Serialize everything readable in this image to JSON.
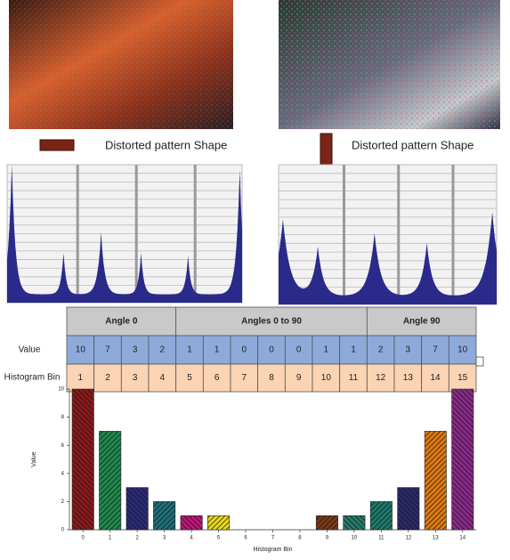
{
  "figures": [
    {
      "caption": "Distorted pattern Shape"
    },
    {
      "caption": "Distorted pattern Shape"
    }
  ],
  "table": {
    "groups": [
      {
        "label": "Angle 0",
        "span": 4
      },
      {
        "label": "Angles 0 to 90",
        "span": 7
      },
      {
        "label": "Angle 90",
        "span": 4
      }
    ],
    "row_labels": [
      "Value",
      "Histogram Bin"
    ],
    "bins": [
      1,
      2,
      3,
      4,
      5,
      6,
      7,
      8,
      9,
      10,
      11,
      12,
      13,
      14,
      15
    ]
  },
  "chart_data": {
    "type": "bar",
    "xlabel": "Histogram Bin",
    "ylabel": "Value",
    "categories": [
      "0",
      "1",
      "2",
      "3",
      "4",
      "5",
      "6",
      "7",
      "8",
      "9",
      "10",
      "11",
      "12",
      "13",
      "14"
    ],
    "values": [
      10,
      7,
      3,
      2,
      1,
      1,
      0,
      0,
      0,
      1,
      1,
      2,
      3,
      7,
      10
    ],
    "colors": [
      "#8b1a1a",
      "#1f8a4c",
      "#2b2b7a",
      "#1f6f7a",
      "#c0157a",
      "#e8d820",
      "#555555",
      "#555555",
      "#555555",
      "#7a3a1a",
      "#2a7a6a",
      "#1f7a6a",
      "#2b2b6a",
      "#e07a10",
      "#8a2a8a"
    ],
    "ylim": [
      0,
      10
    ],
    "yticks": [
      0,
      2,
      4,
      6,
      8,
      10
    ]
  }
}
